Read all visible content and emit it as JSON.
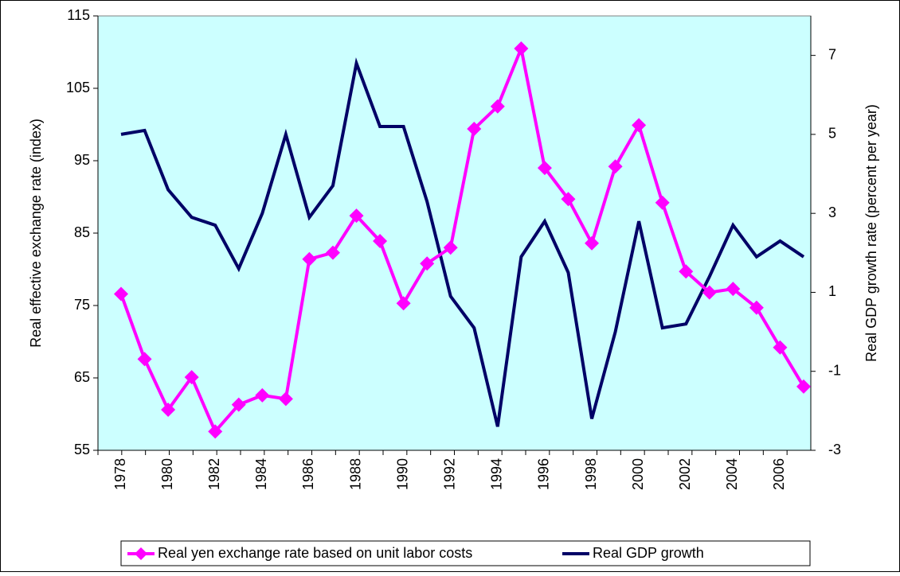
{
  "chart_data": {
    "type": "line",
    "categories": [
      "1978",
      null,
      "1980",
      null,
      "1982",
      null,
      "1984",
      null,
      "1986",
      null,
      "1988",
      null,
      "1990",
      null,
      "1992",
      null,
      "1994",
      null,
      "1996",
      null,
      "1998",
      null,
      "2000",
      null,
      "2002",
      null,
      "2004",
      null,
      "2006",
      null
    ],
    "y_label": "Real effective exchange rate (index)",
    "y2_label": "Real GDP growth rate (percent per year)",
    "ylim": [
      55,
      115
    ],
    "yticks": [
      55,
      65,
      75,
      85,
      95,
      105,
      115
    ],
    "y2lim": [
      -3,
      8
    ],
    "y2ticks": [
      -3,
      -1,
      1,
      3,
      5,
      7
    ],
    "background": "#ccffff",
    "series": [
      {
        "name": "Real yen exchange rate based on unit labor costs",
        "color": "#ff00ff",
        "marker": "diamond",
        "values": [
          76.6,
          67.6,
          60.6,
          65.1,
          57.6,
          61.3,
          62.6,
          62.1,
          81.4,
          82.3,
          87.4,
          83.9,
          75.3,
          80.8,
          83.0,
          99.4,
          102.5,
          110.5,
          94.0,
          89.7,
          83.6,
          94.2,
          99.9,
          89.2,
          79.7,
          76.8,
          77.3,
          74.7,
          69.2,
          63.8
        ]
      },
      {
        "name": "Real GDP growth",
        "color": "#000066",
        "axis": "y2",
        "values": [
          5.0,
          5.1,
          3.6,
          2.9,
          2.7,
          1.6,
          3.0,
          5.0,
          2.9,
          3.7,
          6.8,
          5.2,
          5.2,
          3.3,
          0.9,
          0.1,
          -2.4,
          1.9,
          2.8,
          1.5,
          -2.2,
          0.0,
          2.8,
          0.1,
          0.2,
          1.4,
          2.7,
          1.9,
          2.3,
          1.9
        ]
      }
    ]
  }
}
